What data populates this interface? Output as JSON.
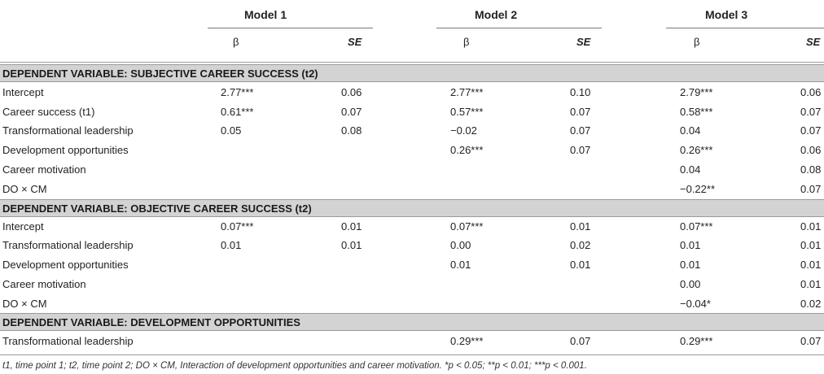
{
  "header": {
    "models": [
      "Model 1",
      "Model 2",
      "Model 3"
    ],
    "beta_label": "β",
    "se_label": "SE"
  },
  "sections": [
    {
      "title": "DEPENDENT VARIABLE: SUBJECTIVE CAREER SUCCESS (t2)",
      "rows": [
        {
          "label": "Intercept",
          "m1b": "2.77***",
          "m1s": "0.06",
          "m2b": "2.77***",
          "m2s": "0.10",
          "m3b": "2.79***",
          "m3s": "0.06"
        },
        {
          "label": "Career success (t1)",
          "m1b": "0.61***",
          "m1s": "0.07",
          "m2b": "0.57***",
          "m2s": "0.07",
          "m3b": "0.58***",
          "m3s": "0.07"
        },
        {
          "label": "Transformational leadership",
          "m1b": "0.05",
          "m1s": "0.08",
          "m2b": "−0.02",
          "m2s": "0.07",
          "m3b": "0.04",
          "m3s": "0.07"
        },
        {
          "label": "Development opportunities",
          "m1b": "",
          "m1s": "",
          "m2b": "0.26***",
          "m2s": "0.07",
          "m3b": "0.26***",
          "m3s": "0.06"
        },
        {
          "label": "Career motivation",
          "m1b": "",
          "m1s": "",
          "m2b": "",
          "m2s": "",
          "m3b": "0.04",
          "m3s": "0.08"
        },
        {
          "label": "DO × CM",
          "m1b": "",
          "m1s": "",
          "m2b": "",
          "m2s": "",
          "m3b": "−0.22**",
          "m3s": "0.07"
        }
      ]
    },
    {
      "title": "DEPENDENT VARIABLE: OBJECTIVE CAREER SUCCESS (t2)",
      "rows": [
        {
          "label": "Intercept",
          "m1b": "0.07***",
          "m1s": "0.01",
          "m2b": "0.07***",
          "m2s": "0.01",
          "m3b": "0.07***",
          "m3s": "0.01"
        },
        {
          "label": "Transformational leadership",
          "m1b": "0.01",
          "m1s": "0.01",
          "m2b": "0.00",
          "m2s": "0.02",
          "m3b": "0.01",
          "m3s": "0.01"
        },
        {
          "label": "Development opportunities",
          "m1b": "",
          "m1s": "",
          "m2b": "0.01",
          "m2s": "0.01",
          "m3b": "0.01",
          "m3s": "0.01"
        },
        {
          "label": "Career motivation",
          "m1b": "",
          "m1s": "",
          "m2b": "",
          "m2s": "",
          "m3b": "0.00",
          "m3s": "0.01"
        },
        {
          "label": "DO × CM",
          "m1b": "",
          "m1s": "",
          "m2b": "",
          "m2s": "",
          "m3b": "−0.04*",
          "m3s": "0.02"
        }
      ]
    },
    {
      "title": "DEPENDENT VARIABLE: DEVELOPMENT OPPORTUNITIES",
      "rows": [
        {
          "label": "Transformational leadership",
          "m1b": "",
          "m1s": "",
          "m2b": "0.29***",
          "m2s": "0.07",
          "m3b": "0.29***",
          "m3s": "0.07"
        }
      ]
    }
  ],
  "footnote": "t1, time point 1; t2, time point 2; DO × CM, Interaction of development opportunities and career motivation. *p < 0.05; **p < 0.01; ***p < 0.001."
}
